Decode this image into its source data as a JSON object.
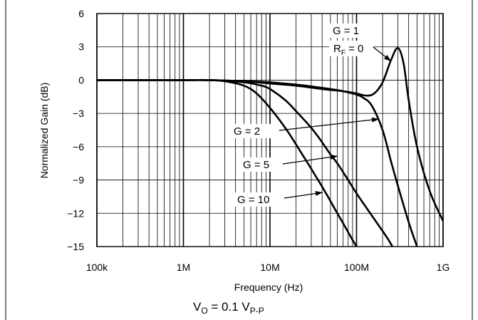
{
  "chart_data": {
    "type": "line",
    "xlabel": "Frequency (Hz)",
    "ylabel": "Normalized Gain (dB)",
    "x_scale": "log",
    "xlim": [
      100000,
      1000000000
    ],
    "ylim": [
      -15,
      6
    ],
    "x_ticks": [
      100000,
      1000000,
      10000000,
      100000000,
      1000000000
    ],
    "x_tick_labels": [
      "100k",
      "1M",
      "10M",
      "100M",
      "1G"
    ],
    "y_ticks": [
      6,
      3,
      0,
      -3,
      -6,
      -9,
      -12,
      -15
    ],
    "y_tick_labels": [
      "6",
      "3",
      "0",
      "−3",
      "−6",
      "−9",
      "−12",
      "−15"
    ],
    "grid": true,
    "series": [
      {
        "name": "G = 1, RF = 0",
        "x": [
          100000,
          1000000,
          2000000,
          5000000,
          10000000,
          20000000,
          40000000,
          70000000,
          100000000,
          130000000,
          160000000,
          200000000,
          250000000,
          300000000,
          350000000,
          400000000,
          500000000,
          700000000,
          1000000000
        ],
        "y": [
          0,
          0,
          0,
          -0.1,
          -0.3,
          -0.5,
          -0.8,
          -1.0,
          -1.2,
          -1.4,
          -1.2,
          -0.2,
          1.8,
          2.9,
          1.5,
          -1.8,
          -6.0,
          -10.0,
          -12.7
        ]
      },
      {
        "name": "G = 2",
        "x": [
          100000,
          1000000,
          2000000,
          5000000,
          10000000,
          20000000,
          40000000,
          60000000,
          80000000,
          100000000,
          120000000,
          150000000,
          200000000,
          250000000,
          300000000,
          400000000,
          500000000
        ],
        "y": [
          0,
          0,
          0,
          -0.1,
          -0.2,
          -0.4,
          -0.7,
          -0.9,
          -1.1,
          -1.3,
          -1.6,
          -2.3,
          -4.5,
          -7.3,
          -9.5,
          -12.8,
          -15
        ]
      },
      {
        "name": "G = 5",
        "x": [
          100000,
          1000000,
          2000000,
          5000000,
          8000000,
          10000000,
          15000000,
          20000000,
          30000000,
          40000000,
          50000000,
          60000000,
          80000000,
          100000000,
          150000000,
          200000000,
          230000000,
          260000000
        ],
        "y": [
          0,
          0,
          0,
          -0.2,
          -0.5,
          -0.8,
          -1.8,
          -2.8,
          -4.3,
          -5.6,
          -6.7,
          -7.5,
          -9.0,
          -10.2,
          -12.2,
          -13.6,
          -14.3,
          -15
        ]
      },
      {
        "name": "G = 10",
        "x": [
          100000,
          1000000,
          2000000,
          3000000,
          5000000,
          7000000,
          10000000,
          15000000,
          20000000,
          30000000,
          40000000,
          50000000,
          60000000,
          70000000,
          80000000,
          90000000,
          100000000
        ],
        "y": [
          0,
          0,
          0,
          -0.1,
          -0.5,
          -1.2,
          -2.5,
          -4.3,
          -5.8,
          -8.0,
          -9.6,
          -10.9,
          -12.0,
          -12.9,
          -13.7,
          -14.4,
          -15
        ]
      }
    ],
    "annotations": [
      {
        "text": "G = 1",
        "arrow": false
      },
      {
        "text": "RF = 0",
        "arrow": true
      },
      {
        "text": "G = 2",
        "arrow": true
      },
      {
        "text": "G = 5",
        "arrow": true
      },
      {
        "text": "G = 10",
        "arrow": true
      }
    ],
    "footer": "VO = 0.1 VP-P"
  },
  "labels": {
    "g1_line1": "G = 1",
    "g1_r": "R",
    "g1_sub": "F",
    "g1_rest": " = 0",
    "g2": "G = 2",
    "g5": "G = 5",
    "g10": "G = 10",
    "footer_v": "V",
    "footer_vsub": "O",
    "footer_mid": " = 0.1 V",
    "footer_psub": "P-P"
  },
  "colors": {
    "ink": "#000000",
    "background": "#ffffff"
  }
}
